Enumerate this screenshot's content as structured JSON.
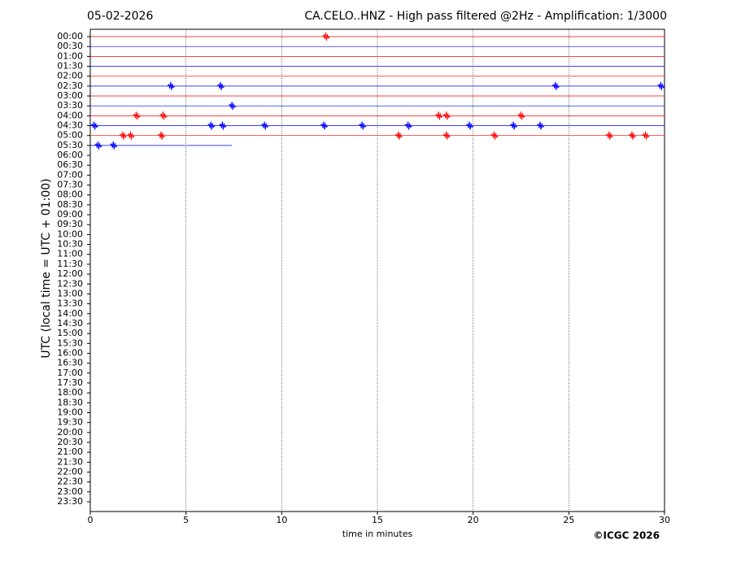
{
  "chart_data": {
    "type": "helicorder",
    "date": "05-02-2026",
    "title": "CA.CELO..HNZ - High pass filtered @2Hz - Amplification: 1/3000",
    "ylabel": "UTC (local time = UTC + 01:00)",
    "xlabel": "time in minutes",
    "copyright": "©ICGC 2026",
    "xlim": [
      0,
      30
    ],
    "xticks": [
      0,
      5,
      10,
      15,
      20,
      25,
      30
    ],
    "grid": true,
    "categories": [
      "00:00",
      "00:30",
      "01:00",
      "01:30",
      "02:00",
      "02:30",
      "03:00",
      "03:30",
      "04:00",
      "04:30",
      "05:00",
      "05:30",
      "06:00",
      "06:30",
      "07:00",
      "07:30",
      "08:00",
      "08:30",
      "09:00",
      "09:30",
      "10:00",
      "10:30",
      "11:00",
      "11:30",
      "12:00",
      "12:30",
      "13:00",
      "13:30",
      "14:00",
      "14:30",
      "15:00",
      "15:30",
      "16:00",
      "16:30",
      "17:00",
      "17:30",
      "18:00",
      "18:30",
      "19:00",
      "19:30",
      "20:00",
      "20:30",
      "21:00",
      "21:30",
      "22:00",
      "22:30",
      "23:00",
      "23:30"
    ],
    "traces": [
      {
        "color": "#ff0000",
        "end": 30,
        "events": [
          12.3
        ]
      },
      {
        "color": "#0000ff",
        "end": 30,
        "events": []
      },
      {
        "color": "#ff0000",
        "end": 30,
        "events": []
      },
      {
        "color": "#0000ff",
        "end": 30,
        "events": []
      },
      {
        "color": "#ff0000",
        "end": 30,
        "events": []
      },
      {
        "color": "#0000ff",
        "end": 30,
        "events": [
          4.2,
          6.8,
          24.3,
          29.8
        ]
      },
      {
        "color": "#ff0000",
        "end": 30,
        "events": []
      },
      {
        "color": "#0000ff",
        "end": 30,
        "events": [
          7.4
        ]
      },
      {
        "color": "#ff0000",
        "end": 30,
        "events": [
          2.4,
          3.8,
          18.2,
          18.6,
          22.5
        ]
      },
      {
        "color": "#0000ff",
        "end": 30,
        "events": [
          0.2,
          6.3,
          6.9,
          9.1,
          12.2,
          14.2,
          16.6,
          19.8,
          22.1,
          23.5
        ]
      },
      {
        "color": "#ff0000",
        "end": 30,
        "events": [
          1.7,
          2.1,
          3.7,
          16.1,
          18.6,
          21.1,
          27.1,
          28.3,
          29.0
        ]
      },
      {
        "color": "#0000ff",
        "end": 7.4,
        "events": [
          0.4,
          1.2
        ]
      }
    ]
  }
}
